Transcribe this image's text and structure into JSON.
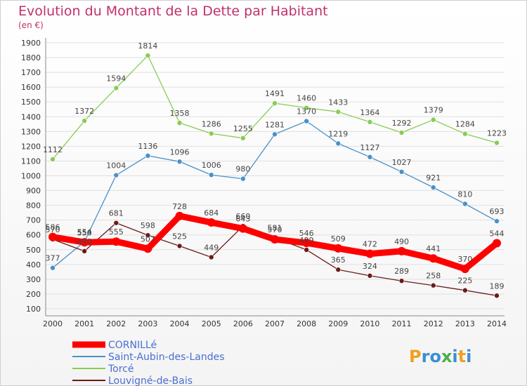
{
  "chart_data": {
    "type": "line",
    "title": "Evolution du Montant de la Dette par Habitant",
    "subtitle": "(en €)",
    "categories": [
      "2000",
      "2001",
      "2002",
      "2003",
      "2004",
      "2005",
      "2006",
      "2007",
      "2008",
      "2009",
      "2010",
      "2011",
      "2012",
      "2013",
      "2014"
    ],
    "ylim": [
      100,
      1900
    ],
    "yticks": [
      100,
      200,
      300,
      400,
      500,
      600,
      700,
      800,
      900,
      1000,
      1100,
      1200,
      1300,
      1400,
      1500,
      1600,
      1700,
      1800,
      1900
    ],
    "grid": true,
    "legend_position": "bottom-left",
    "series": [
      {
        "name": "CORNILLé",
        "color": "#ff0000",
        "values": [
          586,
          550,
          555,
          507,
          728,
          684,
          643,
          570,
          546,
          509,
          472,
          490,
          441,
          370,
          544
        ]
      },
      {
        "name": "Saint-Aubin-des-Landes",
        "color": "#4a90c8",
        "values": [
          377,
          554,
          1004,
          1136,
          1096,
          1006,
          980,
          1281,
          1370,
          1219,
          1127,
          1027,
          921,
          810,
          693
        ]
      },
      {
        "name": "Torcé",
        "color": "#88cc55",
        "values": [
          1112,
          1372,
          1594,
          1814,
          1358,
          1286,
          1255,
          1491,
          1460,
          1433,
          1364,
          1292,
          1379,
          1284,
          1223
        ]
      },
      {
        "name": "Louvigné-de-Bais",
        "color": "#6b1a1a",
        "values": [
          570,
          490,
          681,
          598,
          525,
          449,
          660,
          581,
          499,
          365,
          324,
          289,
          258,
          225,
          189
        ]
      }
    ]
  },
  "logo": {
    "text": "Proxiti"
  }
}
